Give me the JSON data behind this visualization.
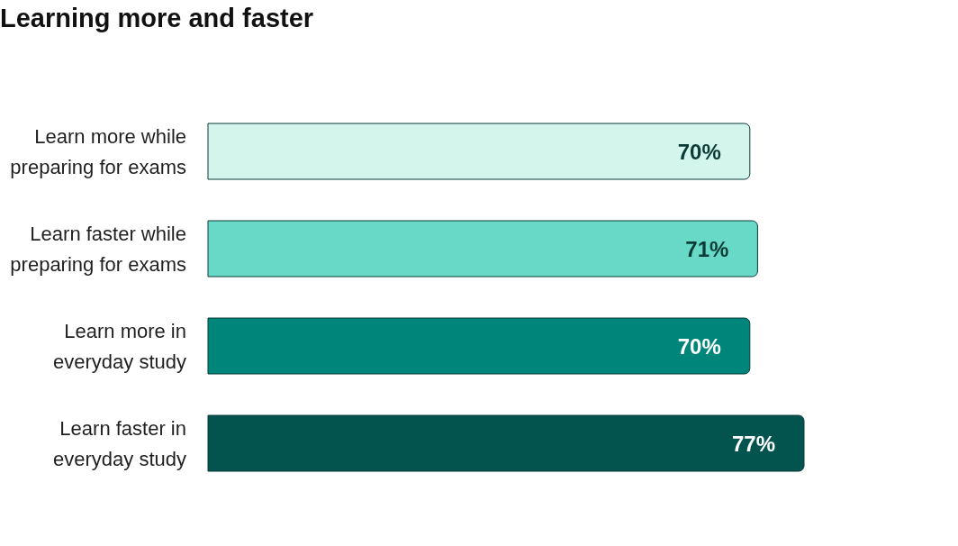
{
  "chart_data": {
    "type": "bar",
    "orientation": "horizontal",
    "title": "Learning more and faster",
    "categories": [
      "Learn more while preparing for exams",
      "Learn faster while preparing for exams",
      "Learn more in everyday study",
      "Learn faster in everyday study"
    ],
    "values": [
      70,
      71,
      70,
      77
    ],
    "colors": [
      "#d3f5ec",
      "#68d9c7",
      "#00857a",
      "#03534f"
    ],
    "value_labels": [
      "70%",
      "71%",
      "70%",
      "77%"
    ]
  }
}
